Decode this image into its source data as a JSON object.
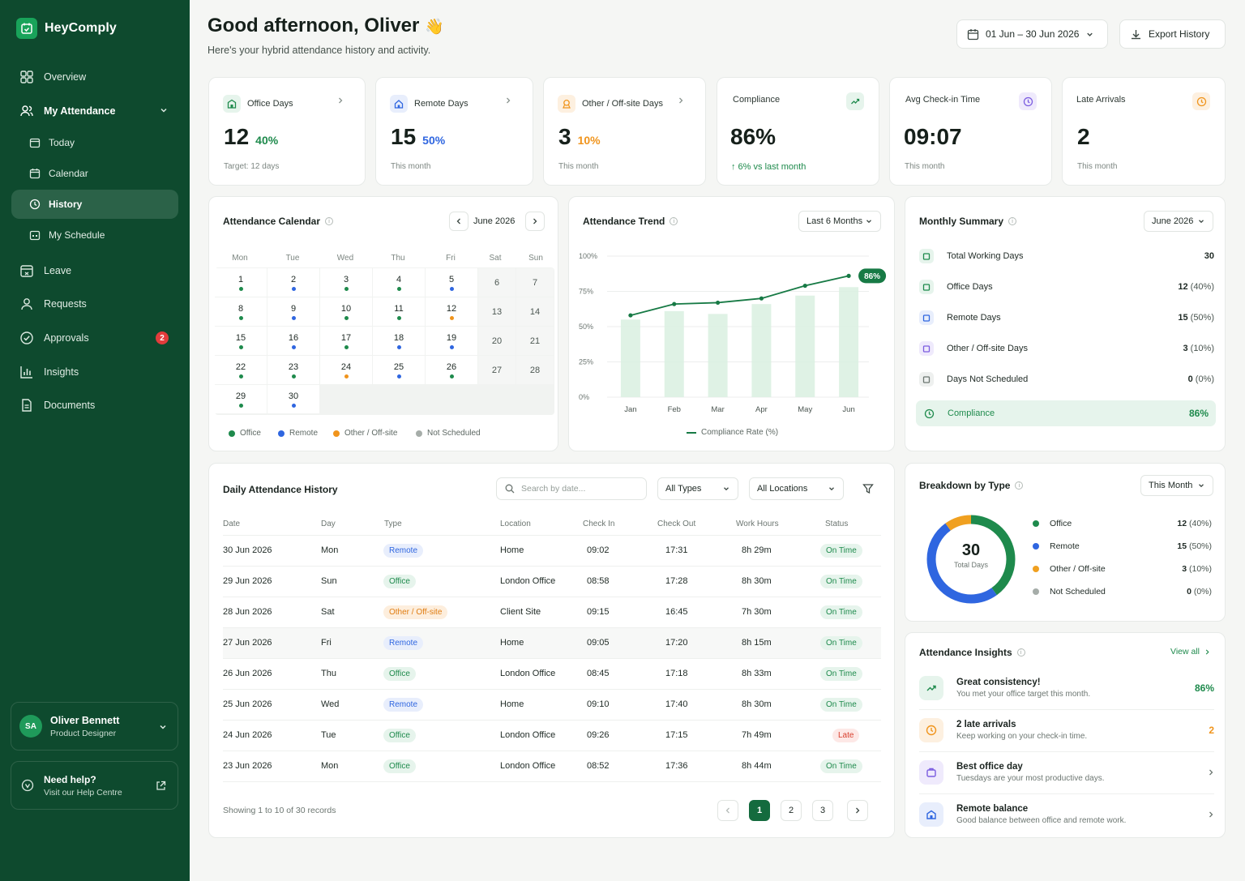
{
  "brand": {
    "name": "HeyComply"
  },
  "sidebar": {
    "items": [
      {
        "label": "Overview"
      },
      {
        "label": "My Attendance"
      },
      {
        "label": "Today"
      },
      {
        "label": "Calendar"
      },
      {
        "label": "History"
      },
      {
        "label": "My Schedule"
      },
      {
        "label": "Leave"
      },
      {
        "label": "Requests"
      },
      {
        "label": "Approvals",
        "badge": "2"
      },
      {
        "label": "Insights"
      },
      {
        "label": "Documents"
      }
    ],
    "user": {
      "initials": "SA",
      "name": "Oliver Bennett",
      "role": "Product Designer"
    },
    "help": {
      "title": "Need help?",
      "subtitle": "Visit our Help Centre"
    }
  },
  "header": {
    "greeting": "Good afternoon, Oliver",
    "emoji": "👋",
    "subtitle": "Here's your hybrid attendance history and activity.",
    "date_range": "01 Jun – 30 Jun 2026",
    "export_label": "Export History"
  },
  "stats": [
    {
      "label": "Office Days",
      "value": "12",
      "pct": "40%",
      "foot": "Target: 12 days",
      "color": "#1e8a4c"
    },
    {
      "label": "Remote Days",
      "value": "15",
      "pct": "50%",
      "foot": "This month",
      "color": "#2f66e0"
    },
    {
      "label": "Other / Off-site Days",
      "value": "3",
      "pct": "10%",
      "foot": "This month",
      "color": "#f0941c"
    },
    {
      "label": "Compliance",
      "value": "86%",
      "foot": "↑ 6% vs last month"
    },
    {
      "label": "Avg Check-in Time",
      "value": "09:07",
      "foot": "This month"
    },
    {
      "label": "Late Arrivals",
      "value": "2",
      "foot": "This month"
    }
  ],
  "calendar": {
    "title": "Attendance Calendar",
    "month": "June 2026",
    "weekdays": [
      "Mon",
      "Tue",
      "Wed",
      "Thu",
      "Fri",
      "Sat",
      "Sun"
    ],
    "days": [
      {
        "d": "1",
        "t": "office"
      },
      {
        "d": "2",
        "t": "remote"
      },
      {
        "d": "3",
        "t": "office"
      },
      {
        "d": "4",
        "t": "office"
      },
      {
        "d": "5",
        "t": "remote"
      },
      {
        "d": "6",
        "t": ""
      },
      {
        "d": "7",
        "t": ""
      },
      {
        "d": "8",
        "t": "office"
      },
      {
        "d": "9",
        "t": "remote"
      },
      {
        "d": "10",
        "t": "office"
      },
      {
        "d": "11",
        "t": "office"
      },
      {
        "d": "12",
        "t": "other"
      },
      {
        "d": "13",
        "t": ""
      },
      {
        "d": "14",
        "t": ""
      },
      {
        "d": "15",
        "t": "office"
      },
      {
        "d": "16",
        "t": "remote"
      },
      {
        "d": "17",
        "t": "office"
      },
      {
        "d": "18",
        "t": "remote"
      },
      {
        "d": "19",
        "t": "remote"
      },
      {
        "d": "20",
        "t": ""
      },
      {
        "d": "21",
        "t": ""
      },
      {
        "d": "22",
        "t": "office"
      },
      {
        "d": "23",
        "t": "office"
      },
      {
        "d": "24",
        "t": "other"
      },
      {
        "d": "25",
        "t": "remote"
      },
      {
        "d": "26",
        "t": "office"
      },
      {
        "d": "27",
        "t": ""
      },
      {
        "d": "28",
        "t": ""
      },
      {
        "d": "29",
        "t": "office"
      },
      {
        "d": "30",
        "t": "remote"
      }
    ],
    "legend": [
      "Office",
      "Remote",
      "Other / Off-site",
      "Not Scheduled"
    ],
    "colors": {
      "office": "#1e8a4c",
      "remote": "#2f66e0",
      "other": "#f0941c",
      "none": "#a6ada9"
    }
  },
  "trend": {
    "title": "Attendance Trend",
    "range": "Last 6 Months",
    "legend": "Compliance Rate (%)",
    "badge": "86%"
  },
  "chart_data": {
    "type": "line",
    "categories": [
      "Jan",
      "Feb",
      "Mar",
      "Apr",
      "May",
      "Jun"
    ],
    "series": [
      {
        "name": "Compliance Rate (%)",
        "values": [
          58,
          66,
          67,
          70,
          79,
          86
        ]
      }
    ],
    "bars": [
      55,
      61,
      59,
      66,
      72,
      78
    ],
    "yticks": [
      "100%",
      "75%",
      "50%",
      "25%",
      "0%"
    ],
    "ylim": [
      0,
      100
    ]
  },
  "summary": {
    "title": "Monthly Summary",
    "month": "June 2026",
    "rows": [
      {
        "label": "Total Working Days",
        "value": "30",
        "pct": ""
      },
      {
        "label": "Office Days",
        "value": "12",
        "pct": "(40%)"
      },
      {
        "label": "Remote Days",
        "value": "15",
        "pct": "(50%)"
      },
      {
        "label": "Other / Off-site Days",
        "value": "3",
        "pct": "(10%)"
      },
      {
        "label": "Days Not Scheduled",
        "value": "0",
        "pct": "(0%)"
      }
    ],
    "compliance_label": "Compliance",
    "compliance_value": "86%"
  },
  "history": {
    "title": "Daily Attendance History",
    "search_placeholder": "Search by date...",
    "filter_type": "All Types",
    "filter_location": "All Locations",
    "columns": [
      "Date",
      "Day",
      "Type",
      "Location",
      "Check In",
      "Check Out",
      "Work Hours",
      "Status"
    ],
    "rows": [
      {
        "date": "30 Jun 2026",
        "day": "Mon",
        "type": "Remote",
        "loc": "Home",
        "in": "09:02",
        "out": "17:31",
        "hours": "8h 29m",
        "status": "On Time"
      },
      {
        "date": "29 Jun 2026",
        "day": "Sun",
        "type": "Office",
        "loc": "London Office",
        "in": "08:58",
        "out": "17:28",
        "hours": "8h 30m",
        "status": "On Time"
      },
      {
        "date": "28 Jun 2026",
        "day": "Sat",
        "type": "Other / Off-site",
        "loc": "Client Site",
        "in": "09:15",
        "out": "16:45",
        "hours": "7h 30m",
        "status": "On Time"
      },
      {
        "date": "27 Jun 2026",
        "day": "Fri",
        "type": "Remote",
        "loc": "Home",
        "in": "09:05",
        "out": "17:20",
        "hours": "8h 15m",
        "status": "On Time"
      },
      {
        "date": "26 Jun 2026",
        "day": "Thu",
        "type": "Office",
        "loc": "London Office",
        "in": "08:45",
        "out": "17:18",
        "hours": "8h 33m",
        "status": "On Time"
      },
      {
        "date": "25 Jun 2026",
        "day": "Wed",
        "type": "Remote",
        "loc": "Home",
        "in": "09:10",
        "out": "17:40",
        "hours": "8h 30m",
        "status": "On Time"
      },
      {
        "date": "24 Jun 2026",
        "day": "Tue",
        "type": "Office",
        "loc": "London Office",
        "in": "09:26",
        "out": "17:15",
        "hours": "7h 49m",
        "status": "Late"
      },
      {
        "date": "23 Jun 2026",
        "day": "Mon",
        "type": "Office",
        "loc": "London Office",
        "in": "08:52",
        "out": "17:36",
        "hours": "8h 44m",
        "status": "On Time"
      }
    ],
    "footer": "Showing 1 to 10 of 30 records",
    "pages": [
      "1",
      "2",
      "3"
    ]
  },
  "breakdown": {
    "title": "Breakdown by Type",
    "period": "This Month",
    "total": "30",
    "total_label": "Total Days",
    "items": [
      {
        "label": "Office",
        "value": "12",
        "pct": "(40%)",
        "share": 40,
        "color": "#1e8a4c"
      },
      {
        "label": "Remote",
        "value": "15",
        "pct": "(50%)",
        "share": 50,
        "color": "#2f66e0"
      },
      {
        "label": "Other / Off-site",
        "value": "3",
        "pct": "(10%)",
        "share": 10,
        "color": "#f0a020"
      },
      {
        "label": "Not Scheduled",
        "value": "0",
        "pct": "(0%)",
        "share": 0,
        "color": "#a6ada9"
      }
    ]
  },
  "insights": {
    "title": "Attendance Insights",
    "view_all": "View all",
    "items": [
      {
        "title": "Great consistency!",
        "sub": "You met your office target this month.",
        "value": "86%"
      },
      {
        "title": "2 late arrivals",
        "sub": "Keep working on your check-in time.",
        "value": "2"
      },
      {
        "title": "Best office day",
        "sub": "Tuesdays are your most productive days.",
        "value": ""
      },
      {
        "title": "Remote balance",
        "sub": "Good balance between office and remote work.",
        "value": ""
      }
    ]
  }
}
